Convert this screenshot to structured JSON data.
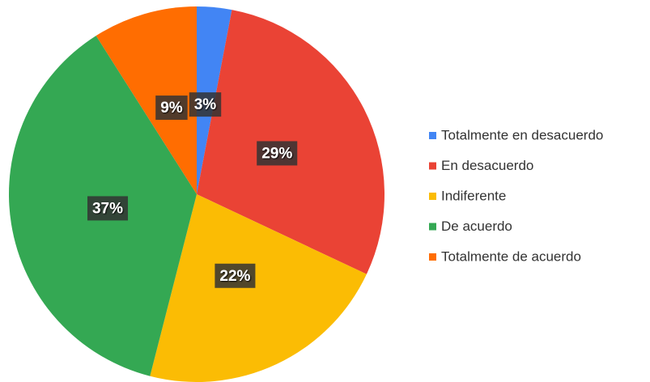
{
  "chart_data": {
    "type": "pie",
    "categories": [
      "Totalmente en desacuerdo",
      "En desacuerdo",
      "Indiferente",
      "De acuerdo",
      "Totalmente de acuerdo"
    ],
    "values": [
      3,
      29,
      22,
      37,
      9
    ],
    "value_labels": [
      "3%",
      "29%",
      "22%",
      "37%",
      "9%"
    ],
    "colors": [
      "#4285f4",
      "#ea4335",
      "#fbbc04",
      "#34a853",
      "#ff6d01"
    ],
    "legend": "right"
  }
}
